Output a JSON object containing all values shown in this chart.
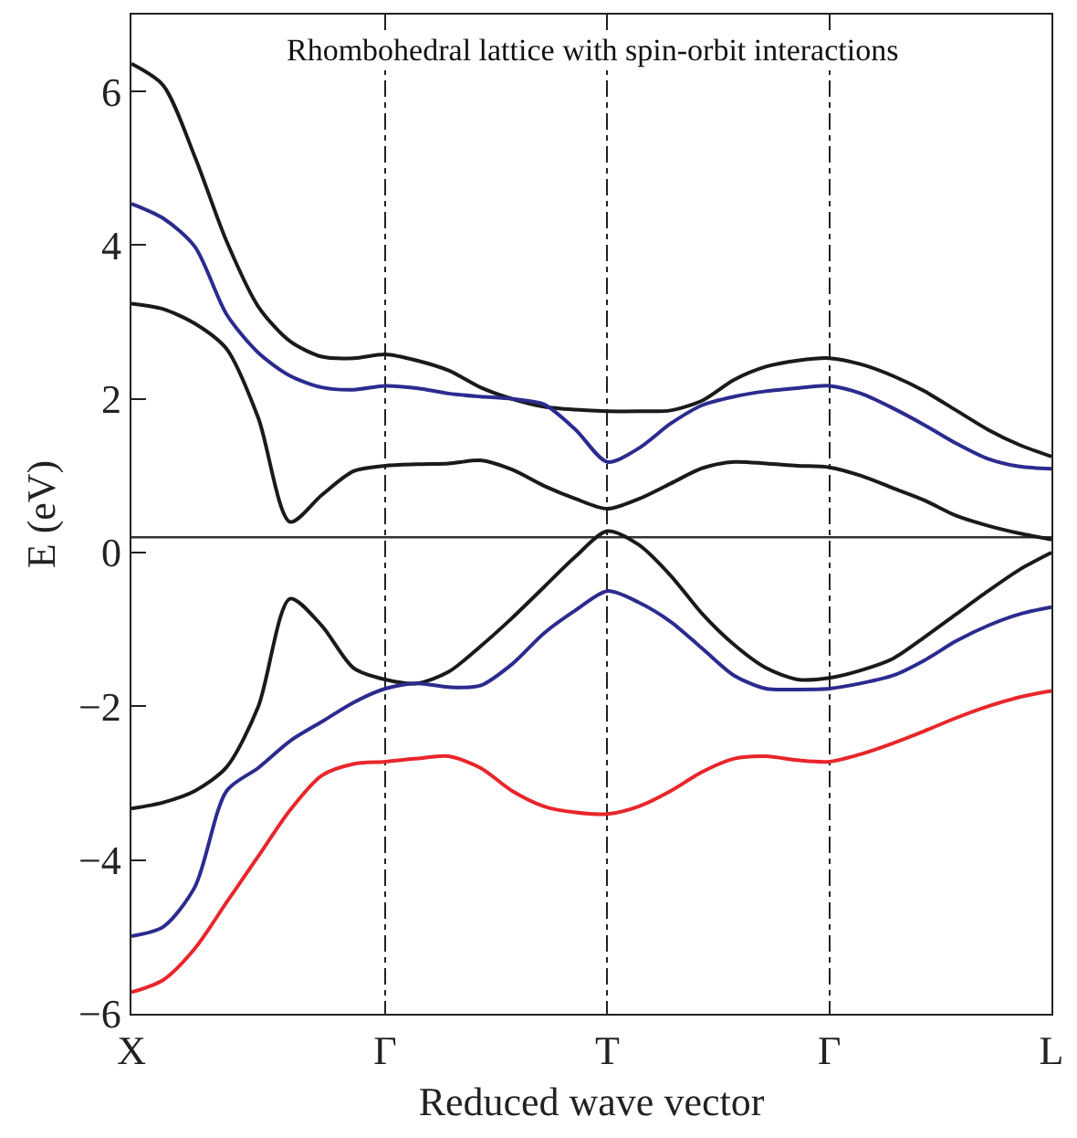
{
  "chart_data": {
    "type": "line",
    "xlabel": "Reduced wave vector",
    "ylabel": "E (eV)",
    "annotations": [
      "Rhombohedral lattice with spin-orbit interactions"
    ],
    "categories": [
      "X",
      null,
      null,
      null,
      null,
      null,
      null,
      null,
      "Γ",
      null,
      null,
      null,
      null,
      null,
      null,
      "T",
      null,
      null,
      null,
      null,
      null,
      null,
      "Γ",
      null,
      null,
      null,
      null,
      null,
      null,
      "L"
    ],
    "ylim": [
      -6,
      7
    ],
    "yticks": [
      {
        "value": -6,
        "label": "−6"
      },
      {
        "value": -4,
        "label": "−4"
      },
      {
        "value": -2,
        "label": "−2"
      },
      0,
      2,
      4,
      6
    ],
    "grid": "x",
    "ref_lines": [
      {
        "axis": "y",
        "value": 0.2,
        "color": "#333333",
        "line_style": "solid"
      }
    ],
    "series": [
      {
        "color": "#1a1a1a",
        "values": [
          6.36,
          6.08,
          5.15,
          4.05,
          3.2,
          2.75,
          2.55,
          2.53,
          2.58,
          2.5,
          2.37,
          2.15,
          2.0,
          1.9,
          1.86,
          1.84,
          1.84,
          1.85,
          1.98,
          2.25,
          2.42,
          2.5,
          2.53,
          2.45,
          2.3,
          2.1,
          1.85,
          1.6,
          1.4,
          1.25
        ]
      },
      {
        "color": "#2b2b8f",
        "values": [
          4.54,
          4.35,
          3.98,
          3.1,
          2.6,
          2.3,
          2.15,
          2.12,
          2.17,
          2.14,
          2.07,
          2.03,
          2.0,
          1.93,
          1.6,
          1.18,
          1.36,
          1.68,
          1.92,
          2.03,
          2.1,
          2.14,
          2.17,
          2.07,
          1.88,
          1.66,
          1.42,
          1.22,
          1.12,
          1.09
        ]
      },
      {
        "color": "#1a1a1a",
        "values": [
          3.24,
          3.17,
          2.98,
          2.65,
          1.75,
          0.4,
          0.75,
          1.06,
          1.13,
          1.15,
          1.16,
          1.2,
          1.08,
          0.87,
          0.7,
          0.57,
          0.7,
          0.9,
          1.1,
          1.18,
          1.16,
          1.13,
          1.11,
          1.0,
          0.84,
          0.68,
          0.48,
          0.35,
          0.25,
          0.17
        ]
      },
      {
        "color": "#1a1a1a",
        "values": [
          -3.33,
          -3.25,
          -3.1,
          -2.79,
          -2.0,
          -0.6,
          -0.95,
          -1.5,
          -1.65,
          -1.7,
          -1.55,
          -1.22,
          -0.85,
          -0.45,
          -0.05,
          0.28,
          0.1,
          -0.3,
          -0.8,
          -1.2,
          -1.5,
          -1.65,
          -1.63,
          -1.53,
          -1.38,
          -1.1,
          -0.8,
          -0.5,
          -0.22,
          0.0
        ]
      },
      {
        "color": "#2b2b8f",
        "values": [
          -4.99,
          -4.87,
          -4.35,
          -3.1,
          -2.8,
          -2.45,
          -2.2,
          -1.95,
          -1.77,
          -1.7,
          -1.75,
          -1.73,
          -1.45,
          -1.05,
          -0.75,
          -0.5,
          -0.65,
          -0.9,
          -1.25,
          -1.6,
          -1.77,
          -1.78,
          -1.77,
          -1.7,
          -1.6,
          -1.4,
          -1.15,
          -0.95,
          -0.8,
          -0.71
        ]
      },
      {
        "color": "#e8262b",
        "values": [
          -5.72,
          -5.56,
          -5.15,
          -4.55,
          -3.95,
          -3.35,
          -2.9,
          -2.75,
          -2.72,
          -2.68,
          -2.65,
          -2.8,
          -3.1,
          -3.3,
          -3.38,
          -3.4,
          -3.3,
          -3.1,
          -2.85,
          -2.68,
          -2.65,
          -2.7,
          -2.72,
          -2.62,
          -2.48,
          -2.32,
          -2.15,
          -2.0,
          -1.88,
          -1.8
        ]
      }
    ]
  }
}
